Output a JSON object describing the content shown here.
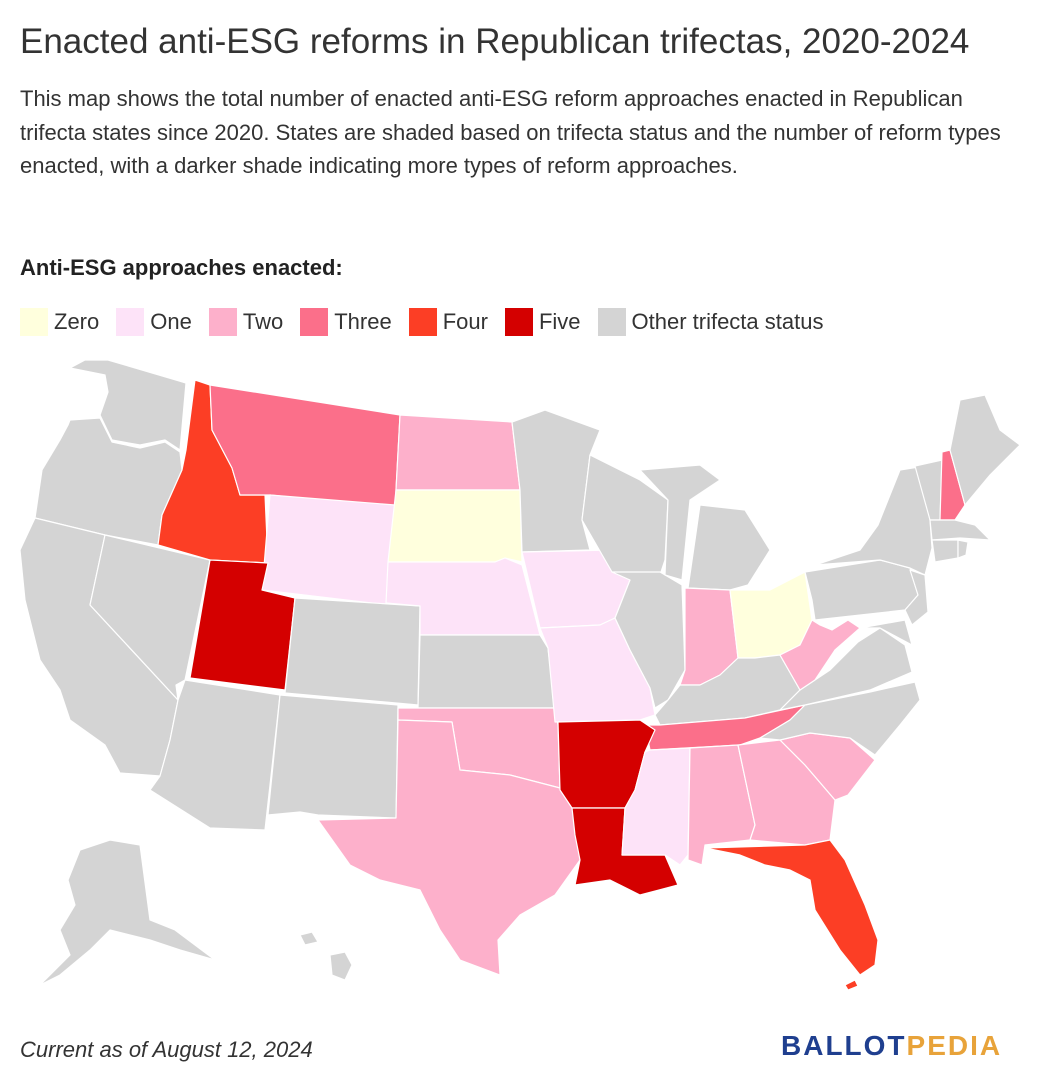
{
  "title": "Enacted anti-ESG reforms in Republican trifectas, 2020-2024",
  "description": "This map shows the total number of enacted anti-ESG reform approaches enacted in Republican trifecta states since 2020. States are shaded based on trifecta status and the number of reform types enacted, with a darker shade indicating more types of reform approaches.",
  "legend": {
    "title": "Anti-ESG approaches enacted:",
    "items": [
      {
        "label": "Zero",
        "color": "#ffffdd"
      },
      {
        "label": "One",
        "color": "#fde3f8"
      },
      {
        "label": "Two",
        "color": "#fdb0cb"
      },
      {
        "label": "Three",
        "color": "#fb6f8a"
      },
      {
        "label": "Four",
        "color": "#fc3e25"
      },
      {
        "label": "Five",
        "color": "#d40000"
      },
      {
        "label": "Other trifecta status",
        "color": "#d4d4d4"
      }
    ]
  },
  "states": {
    "Zero": [
      "South Dakota",
      "Ohio"
    ],
    "One": [
      "Wyoming",
      "Nebraska",
      "Iowa",
      "Missouri",
      "Mississippi"
    ],
    "Two": [
      "North Dakota",
      "Indiana",
      "West Virginia",
      "Texas",
      "Oklahoma",
      "Alabama",
      "Georgia",
      "South Carolina"
    ],
    "Three": [
      "Montana",
      "Tennessee",
      "New Hampshire"
    ],
    "Four": [
      "Idaho",
      "Florida"
    ],
    "Five": [
      "Utah",
      "Arkansas",
      "Louisiana"
    ]
  },
  "footer": "Current as of August 12, 2024",
  "logo": {
    "part1": "BALLOT",
    "part2": "PEDIA"
  }
}
